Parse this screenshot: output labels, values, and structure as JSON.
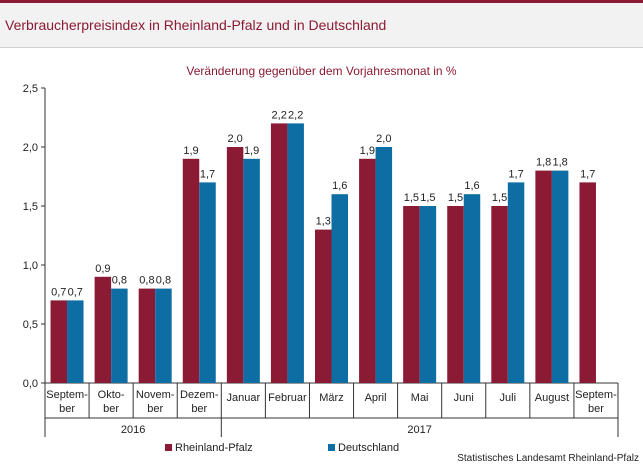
{
  "header": {
    "title": "Verbraucherpreisindex in Rheinland-Pfalz und in Deutschland"
  },
  "source": "Statistisches Landesamt Rheinland-Pfalz",
  "chart_data": {
    "type": "bar",
    "subtitle": "Veränderung gegenüber dem Vorjahresmonat in %",
    "categories": [
      [
        "Septem-",
        "ber"
      ],
      [
        "Okto-",
        "ber"
      ],
      [
        "Novem-",
        "ber"
      ],
      [
        "Dezem-",
        "ber"
      ],
      [
        "Januar"
      ],
      [
        "Februar"
      ],
      [
        "März"
      ],
      [
        "April"
      ],
      [
        "Mai"
      ],
      [
        "Juni"
      ],
      [
        "Juli"
      ],
      [
        "August"
      ],
      [
        "Septem-",
        "ber"
      ]
    ],
    "years": [
      {
        "label": "2016",
        "from": 0,
        "to": 3
      },
      {
        "label": "2017",
        "from": 4,
        "to": 12
      }
    ],
    "series": [
      {
        "name": "Rheinland-Pfalz",
        "color": "#8b1a35",
        "values": [
          0.7,
          0.9,
          0.8,
          1.9,
          2.0,
          2.2,
          1.3,
          1.9,
          1.5,
          1.5,
          1.5,
          1.8,
          1.7
        ]
      },
      {
        "name": "Deutschland",
        "color": "#0e6ea3",
        "values": [
          0.7,
          0.8,
          0.8,
          1.7,
          1.9,
          2.2,
          1.6,
          2.0,
          1.5,
          1.6,
          1.7,
          1.8,
          null
        ]
      }
    ],
    "data_labels": [
      [
        "0,7",
        "0,7"
      ],
      [
        "0,9",
        "0,8"
      ],
      [
        "0,8",
        "0,8"
      ],
      [
        "1,9",
        "1,7"
      ],
      [
        "2,0",
        "1,9"
      ],
      [
        "2,2",
        "2,2"
      ],
      [
        "1,3",
        "1,6"
      ],
      [
        "1,9",
        "2,0"
      ],
      [
        "1,5",
        "1,5"
      ],
      [
        "1,5",
        "1,6"
      ],
      [
        "1,5",
        "1,7"
      ],
      [
        "1,8",
        "1,8"
      ],
      [
        "1,7",
        ""
      ]
    ],
    "ylim": [
      0,
      2.5
    ],
    "yticks": [
      0,
      0.5,
      1.0,
      1.5,
      2.0,
      2.5
    ],
    "ytick_labels": [
      "0,0",
      "0,5",
      "1,0",
      "1,5",
      "2,0",
      "2,5"
    ],
    "grid": false,
    "legend_position": "bottom"
  }
}
